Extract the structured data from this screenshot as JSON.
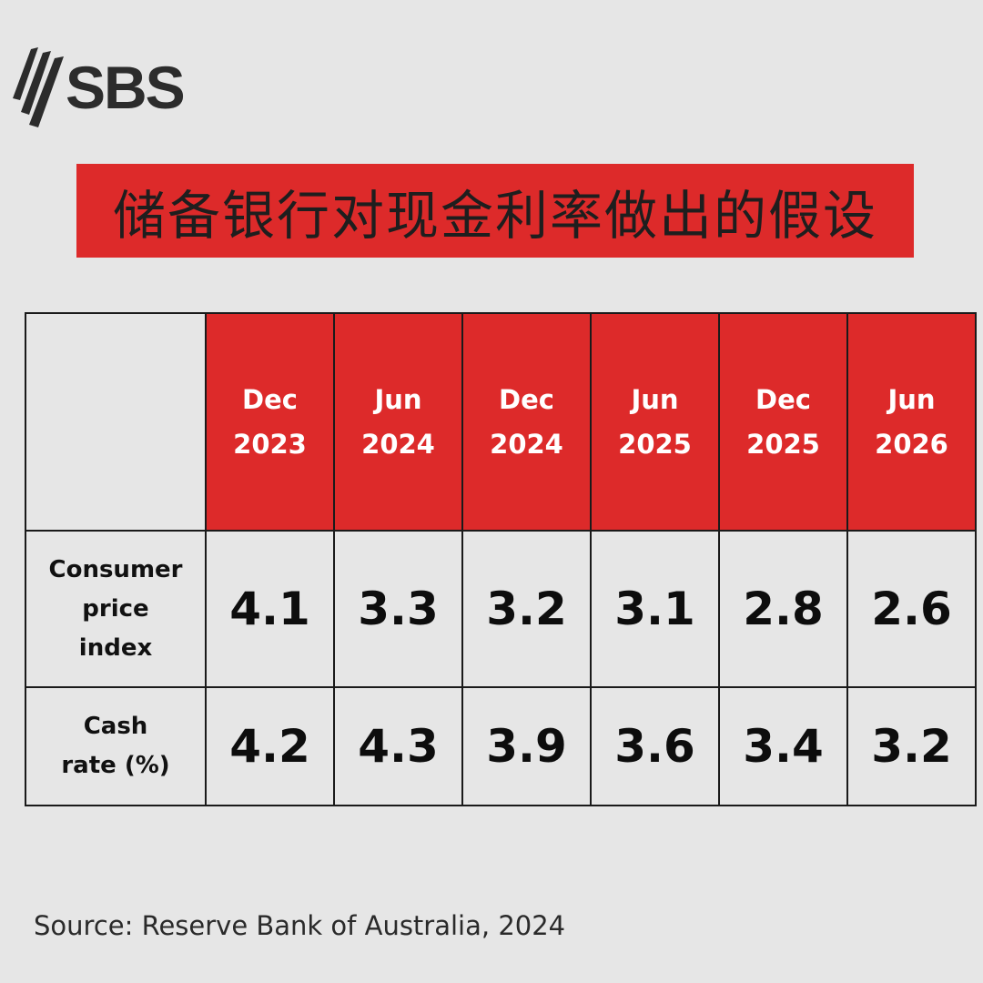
{
  "logo": {
    "text": "SBS"
  },
  "title": "储备银行对现金利率做出的假设",
  "table": {
    "columns": [
      {
        "line1": "Dec",
        "line2": "2023"
      },
      {
        "line1": "Jun",
        "line2": "2024"
      },
      {
        "line1": "Dec",
        "line2": "2024"
      },
      {
        "line1": "Jun",
        "line2": "2025"
      },
      {
        "line1": "Dec",
        "line2": "2025"
      },
      {
        "line1": "Jun",
        "line2": "2026"
      }
    ],
    "rows": [
      {
        "label_lines": [
          "Consumer",
          "price",
          "index"
        ],
        "values": [
          "4.1",
          "3.3",
          "3.2",
          "3.1",
          "2.8",
          "2.6"
        ]
      },
      {
        "label_lines": [
          "Cash",
          "rate (%)"
        ],
        "values": [
          "4.2",
          "4.3",
          "3.9",
          "3.6",
          "3.4",
          "3.2"
        ]
      }
    ]
  },
  "source": "Source: Reserve Bank of Australia, 2024",
  "colors": {
    "accent_red": "#dd2a2a",
    "background": "#e6e6e6",
    "logo_gray": "#2c2c2c"
  }
}
